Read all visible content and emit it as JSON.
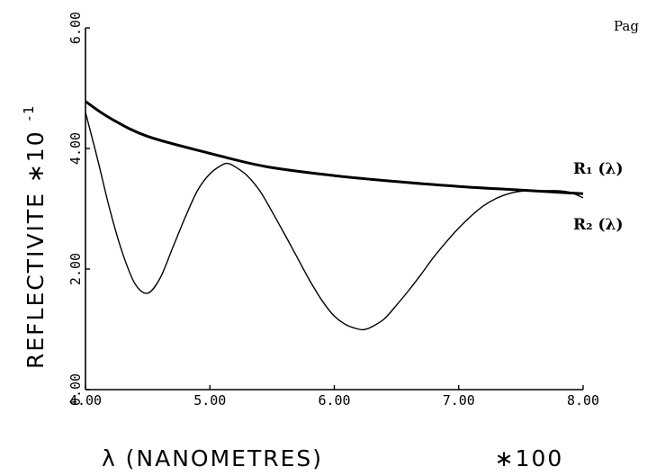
{
  "page_label": "Pag",
  "chart_data": {
    "type": "line",
    "title": "",
    "xlabel": "λ (NANOMETRES)",
    "x_multiplier": "∗100",
    "ylabel": "REFLECTIVITE ∗10",
    "y_multiplier_exponent": "-1",
    "xlim": [
      4.0,
      8.0
    ],
    "ylim": [
      0.0,
      6.0
    ],
    "x_ticks": [
      "4.00",
      "5.00",
      "6.00",
      "7.00",
      "8.00"
    ],
    "y_ticks": [
      "0.00",
      "2.00",
      "4.00",
      "6.00"
    ],
    "grid": false,
    "series": [
      {
        "name": "R₁ (λ)",
        "line": "thick",
        "x": [
          4.0,
          4.2,
          4.5,
          5.0,
          5.45,
          6.0,
          6.5,
          7.0,
          7.5,
          8.0
        ],
        "y": [
          4.78,
          4.5,
          4.2,
          3.92,
          3.7,
          3.55,
          3.45,
          3.37,
          3.31,
          3.25
        ]
      },
      {
        "name": "R₂ (λ)",
        "line": "thin",
        "x": [
          4.0,
          4.1,
          4.2,
          4.3,
          4.4,
          4.5,
          4.6,
          4.7,
          4.8,
          4.9,
          5.0,
          5.1,
          5.15,
          5.2,
          5.3,
          5.4,
          5.5,
          5.6,
          5.7,
          5.8,
          5.9,
          6.0,
          6.1,
          6.2,
          6.25,
          6.3,
          6.4,
          6.5,
          6.6,
          6.7,
          6.8,
          6.9,
          7.0,
          7.1,
          7.2,
          7.3,
          7.4,
          7.5,
          7.6,
          7.7,
          7.8,
          7.9,
          8.0
        ],
        "y": [
          4.6,
          3.8,
          2.95,
          2.25,
          1.75,
          1.6,
          1.85,
          2.35,
          2.85,
          3.3,
          3.58,
          3.73,
          3.75,
          3.7,
          3.55,
          3.3,
          2.95,
          2.58,
          2.2,
          1.82,
          1.48,
          1.22,
          1.07,
          1.0,
          1.0,
          1.04,
          1.17,
          1.4,
          1.65,
          1.92,
          2.2,
          2.45,
          2.68,
          2.88,
          3.05,
          3.17,
          3.25,
          3.29,
          3.3,
          3.3,
          3.3,
          3.27,
          3.18
        ]
      }
    ]
  }
}
